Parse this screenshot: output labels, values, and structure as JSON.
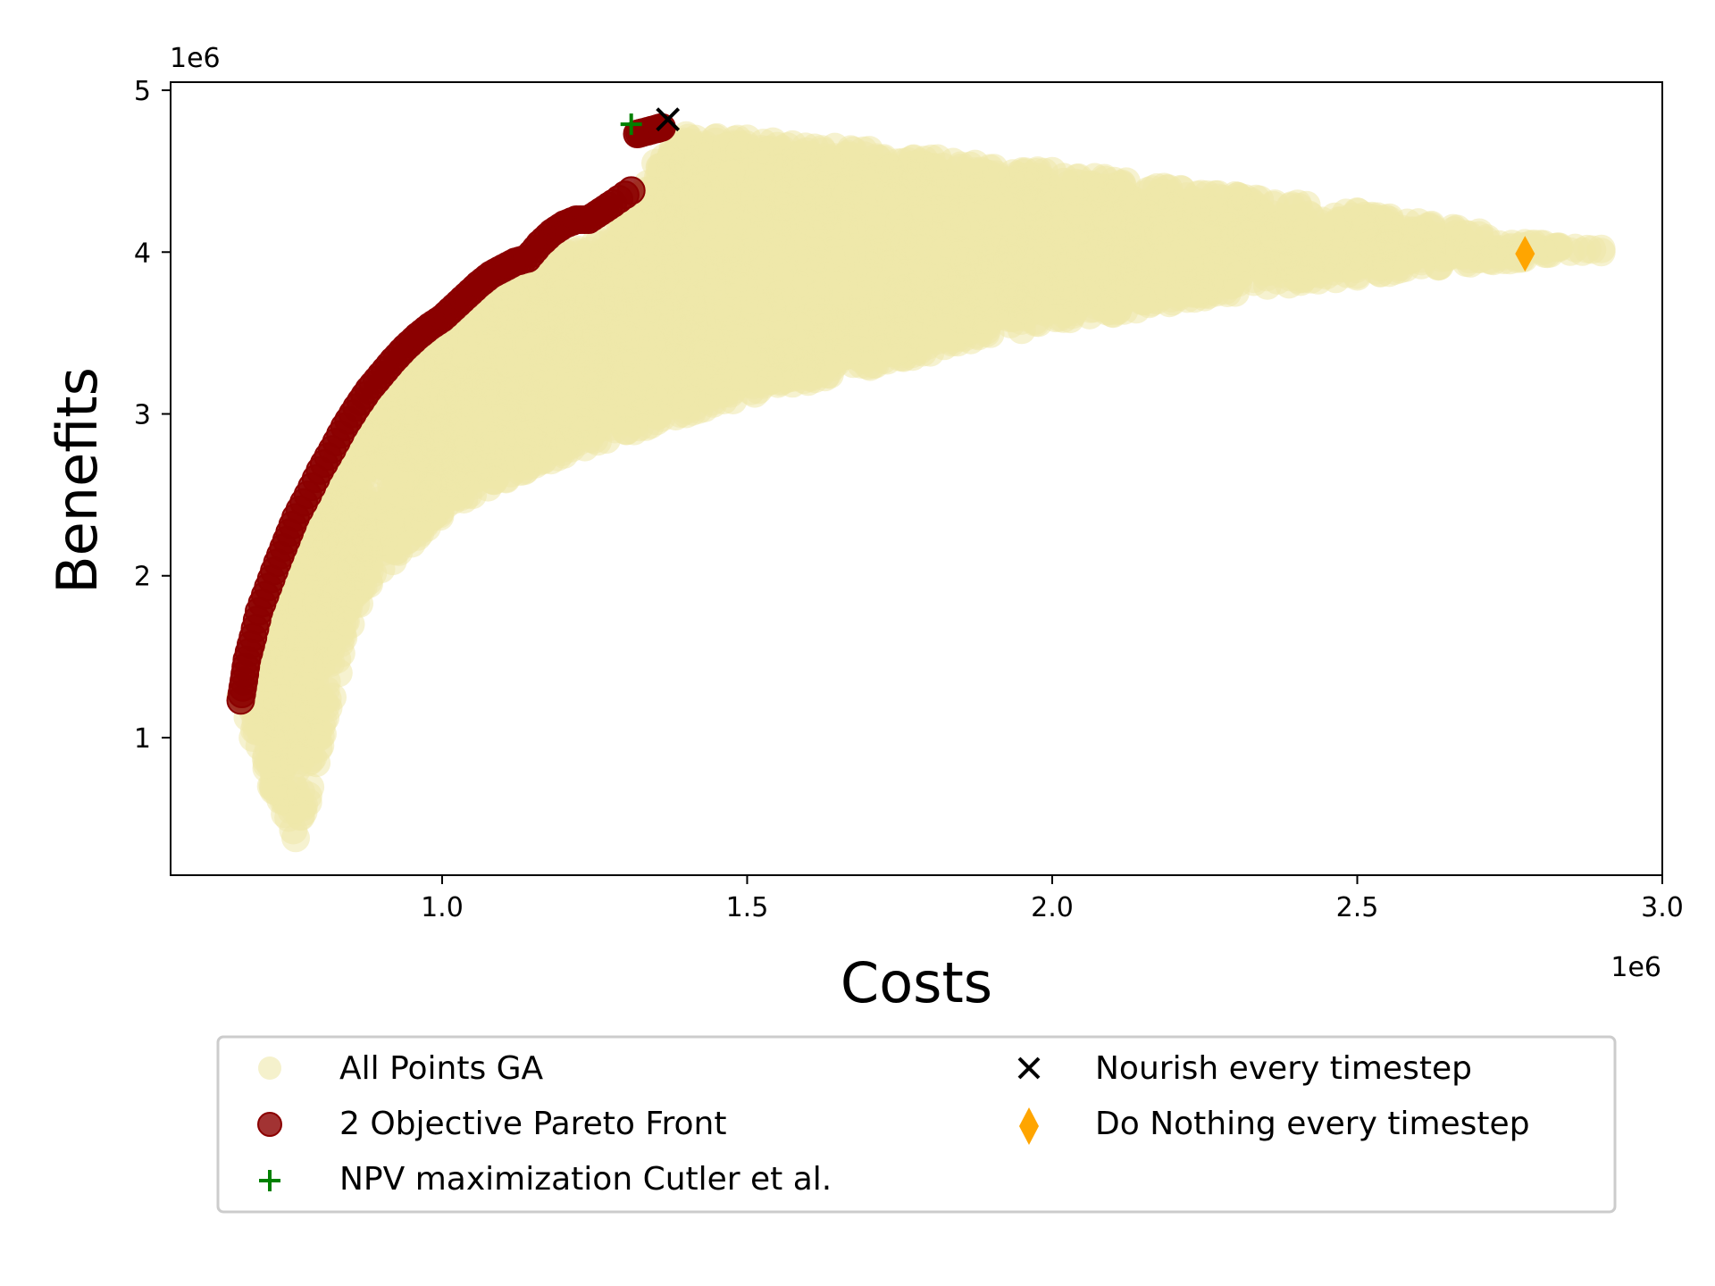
{
  "chart_data": {
    "type": "scatter",
    "title": "",
    "xlabel": "Costs",
    "ylabel": "Benefits",
    "x_offset_label": "1e6",
    "y_offset_label": "1e6",
    "xlim": [
      0.555,
      3.0
    ],
    "ylim": [
      0.15,
      5.05
    ],
    "x_ticks": [
      1.0,
      1.5,
      2.0,
      2.5,
      3.0
    ],
    "x_tick_labels": [
      "1.0",
      "1.5",
      "2.0",
      "2.5",
      "3.0"
    ],
    "y_ticks": [
      1,
      2,
      3,
      4,
      5
    ],
    "y_tick_labels": [
      "1",
      "2",
      "3",
      "4",
      "5"
    ],
    "grid": false,
    "legend_placement": "bottom-center outside",
    "series": [
      {
        "name": "All Points GA",
        "marker": "circle",
        "color": "#eee8aa",
        "region": {
          "upper_boundary": [
            [
              0.67,
              1.25
            ],
            [
              0.7,
              1.75
            ],
            [
              0.75,
              2.25
            ],
            [
              0.8,
              2.6
            ],
            [
              0.85,
              2.95
            ],
            [
              0.9,
              3.2
            ],
            [
              0.95,
              3.38
            ],
            [
              1.0,
              3.55
            ],
            [
              1.05,
              3.7
            ],
            [
              1.1,
              3.82
            ],
            [
              1.15,
              3.92
            ],
            [
              1.2,
              4.0
            ],
            [
              1.25,
              4.05
            ],
            [
              1.3,
              4.2
            ],
            [
              1.35,
              4.55
            ],
            [
              1.4,
              4.72
            ],
            [
              1.5,
              4.7
            ],
            [
              1.7,
              4.63
            ],
            [
              2.0,
              4.5
            ],
            [
              2.3,
              4.35
            ],
            [
              2.5,
              4.25
            ],
            [
              2.7,
              4.12
            ],
            [
              2.8,
              4.05
            ],
            [
              2.9,
              4.02
            ]
          ],
          "lower_boundary": [
            [
              2.9,
              4.0
            ],
            [
              2.75,
              3.95
            ],
            [
              2.5,
              3.85
            ],
            [
              2.3,
              3.75
            ],
            [
              2.1,
              3.62
            ],
            [
              1.95,
              3.52
            ],
            [
              1.8,
              3.38
            ],
            [
              1.6,
              3.2
            ],
            [
              1.4,
              3.0
            ],
            [
              1.2,
              2.75
            ],
            [
              1.05,
              2.5
            ],
            [
              0.95,
              2.2
            ],
            [
              0.88,
              1.95
            ],
            [
              0.85,
              1.7
            ],
            [
              0.83,
              1.4
            ],
            [
              0.82,
              1.25
            ],
            [
              0.8,
              0.95
            ],
            [
              0.78,
              0.6
            ],
            [
              0.76,
              0.38
            ],
            [
              0.72,
              0.7
            ],
            [
              0.69,
              1.0
            ],
            [
              0.67,
              1.25
            ]
          ]
        }
      },
      {
        "name": "2 Objective Pareto Front",
        "marker": "circle",
        "color": "#8b0000",
        "x": [
          0.67,
          0.675,
          0.68,
          0.69,
          0.7,
          0.715,
          0.73,
          0.745,
          0.76,
          0.78,
          0.8,
          0.82,
          0.84,
          0.86,
          0.88,
          0.9,
          0.92,
          0.94,
          0.96,
          0.98,
          1.0,
          1.02,
          1.04,
          1.06,
          1.08,
          1.1,
          1.12,
          1.14,
          1.16,
          1.18,
          1.2,
          1.22,
          1.24,
          1.26,
          1.28,
          1.31,
          1.32,
          1.33,
          1.35,
          1.36
        ],
        "y": [
          1.23,
          1.35,
          1.48,
          1.62,
          1.78,
          1.93,
          2.08,
          2.22,
          2.36,
          2.5,
          2.65,
          2.78,
          2.92,
          3.04,
          3.15,
          3.24,
          3.33,
          3.41,
          3.48,
          3.54,
          3.59,
          3.66,
          3.73,
          3.8,
          3.86,
          3.9,
          3.94,
          3.96,
          4.05,
          4.12,
          4.17,
          4.2,
          4.2,
          4.25,
          4.3,
          4.38,
          4.73,
          4.74,
          4.76,
          4.77
        ]
      },
      {
        "name": "NPV maximization Cutler et al.",
        "marker": "plus",
        "color": "#008000",
        "x": [
          1.31
        ],
        "y": [
          4.79
        ]
      },
      {
        "name": "Nourish every timestep",
        "marker": "x",
        "color": "#000000",
        "x": [
          1.37
        ],
        "y": [
          4.82
        ]
      },
      {
        "name": "Do Nothing every timestep",
        "marker": "diamond",
        "color": "#ffa500",
        "x": [
          2.775
        ],
        "y": [
          3.99
        ]
      }
    ]
  }
}
